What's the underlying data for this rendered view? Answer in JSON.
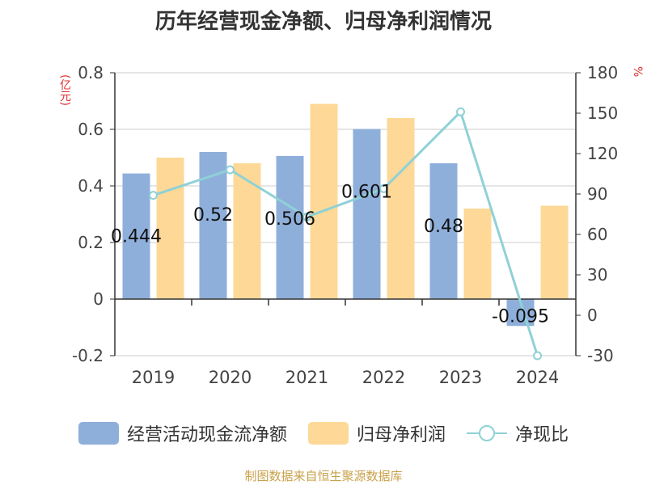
{
  "chart_data": {
    "type": "bar",
    "title": "历年经营现金净额、归母净利润情况",
    "y_left_unit": "(亿元)",
    "y_right_unit": "%",
    "categories": [
      "2019",
      "2020",
      "2021",
      "2022",
      "2023",
      "2024"
    ],
    "series": [
      {
        "name": "经营活动现金流净额",
        "type": "bar",
        "axis": "left",
        "color": "#8fafdb",
        "values": [
          0.444,
          0.52,
          0.506,
          0.601,
          0.48,
          -0.095
        ],
        "labels": [
          "0.444",
          "0.52",
          "0.506",
          "0.601",
          "0.48",
          "-0.095"
        ]
      },
      {
        "name": "归母净利润",
        "type": "bar",
        "axis": "left",
        "color": "#fdd897",
        "values": [
          0.5,
          0.48,
          0.69,
          0.64,
          0.32,
          0.33
        ]
      },
      {
        "name": "净现比",
        "type": "line",
        "axis": "right",
        "color": "#8fd1d6",
        "values": [
          89,
          108,
          73,
          94,
          151,
          -30
        ]
      }
    ],
    "ylim_left": [
      -0.2,
      0.8
    ],
    "yticks_left": [
      "-0.2",
      "0",
      "0.2",
      "0.4",
      "0.6",
      "0.8"
    ],
    "ylim_right": [
      -30,
      180
    ],
    "yticks_right": [
      "-30",
      "0",
      "30",
      "60",
      "90",
      "120",
      "150",
      "180"
    ],
    "grid": true,
    "legend_position": "bottom"
  },
  "footer": {
    "source": "制图数据来自恒生聚源数据库"
  }
}
